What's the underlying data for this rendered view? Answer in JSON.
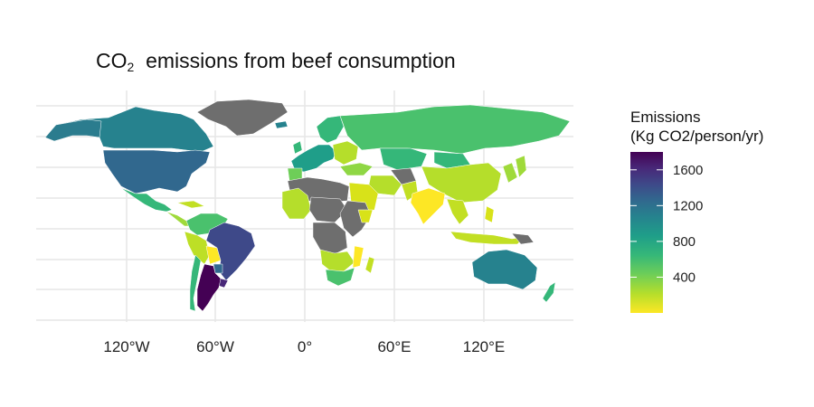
{
  "title": {
    "main": "CO",
    "sub": "2",
    "rest": "  emissions from beef consumption"
  },
  "axis": {
    "x_ticks": [
      "120°W",
      "60°W",
      "0°",
      "60°E",
      "120°E"
    ]
  },
  "legend": {
    "title_line1": "Emissions",
    "title_line2": "(Kg CO2/person/yr)",
    "ticks": [
      "1600",
      "1200",
      "800",
      "400"
    ],
    "tick_values": [
      1600,
      1200,
      800,
      400
    ],
    "range": [
      0,
      1800
    ],
    "colors": [
      "#fde725",
      "#b5de2b",
      "#6ece58",
      "#35b779",
      "#1f9e89",
      "#26828e",
      "#31688e",
      "#3e4989",
      "#482878",
      "#440154"
    ]
  },
  "map": {
    "no_data_color": "#6e6e6e",
    "grid": true
  }
}
